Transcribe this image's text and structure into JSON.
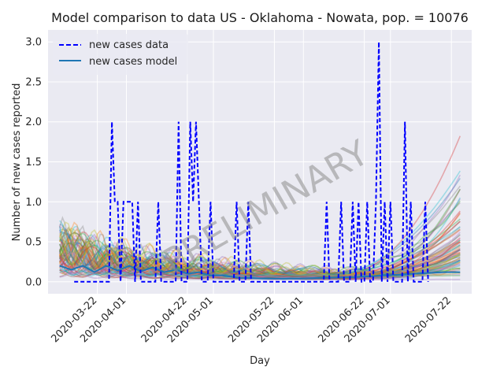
{
  "chart_data": {
    "type": "line",
    "title": "Model comparison to data US - Oklahoma - Nowata, pop. = 10076",
    "xlabel": "Day",
    "ylabel": "Number of new cases reported",
    "x_start": "2020-03-09",
    "x_end": "2020-07-25",
    "xlim": [
      "2020-03-05",
      "2020-07-29"
    ],
    "ylim": [
      -0.15,
      3.15
    ],
    "yticks": [
      0.0,
      0.5,
      1.0,
      1.5,
      2.0,
      2.5,
      3.0
    ],
    "xticks": [
      "2020-03-22",
      "2020-04-01",
      "2020-04-22",
      "2020-05-01",
      "2020-05-22",
      "2020-06-01",
      "2020-06-22",
      "2020-07-01",
      "2020-07-22"
    ],
    "grid": true,
    "legend_position": "top-left",
    "watermark": "PRELIMINARY",
    "series": [
      {
        "name": "new cases data",
        "style": "dashed",
        "color": "#0000ff",
        "points": [
          [
            "2020-03-14",
            0
          ],
          [
            "2020-03-26",
            0
          ],
          [
            "2020-03-27",
            2
          ],
          [
            "2020-03-28",
            1
          ],
          [
            "2020-03-29",
            1
          ],
          [
            "2020-03-30",
            0
          ],
          [
            "2020-03-31",
            1
          ],
          [
            "2020-04-01",
            1
          ],
          [
            "2020-04-02",
            1
          ],
          [
            "2020-04-03",
            1
          ],
          [
            "2020-04-04",
            0
          ],
          [
            "2020-04-05",
            1
          ],
          [
            "2020-04-06",
            0
          ],
          [
            "2020-04-11",
            0
          ],
          [
            "2020-04-12",
            1
          ],
          [
            "2020-04-13",
            0
          ],
          [
            "2020-04-18",
            0
          ],
          [
            "2020-04-19",
            2
          ],
          [
            "2020-04-20",
            0
          ],
          [
            "2020-04-22",
            0
          ],
          [
            "2020-04-23",
            2
          ],
          [
            "2020-04-24",
            1
          ],
          [
            "2020-04-25",
            2
          ],
          [
            "2020-04-26",
            1
          ],
          [
            "2020-04-27",
            0
          ],
          [
            "2020-04-29",
            0
          ],
          [
            "2020-04-30",
            1
          ],
          [
            "2020-05-01",
            0
          ],
          [
            "2020-05-08",
            0
          ],
          [
            "2020-05-09",
            1
          ],
          [
            "2020-05-10",
            0
          ],
          [
            "2020-05-12",
            0
          ],
          [
            "2020-05-13",
            1
          ],
          [
            "2020-05-14",
            0
          ],
          [
            "2020-06-08",
            0
          ],
          [
            "2020-06-09",
            1
          ],
          [
            "2020-06-10",
            0
          ],
          [
            "2020-06-13",
            0
          ],
          [
            "2020-06-14",
            1
          ],
          [
            "2020-06-15",
            0
          ],
          [
            "2020-06-17",
            0
          ],
          [
            "2020-06-18",
            1
          ],
          [
            "2020-06-19",
            0
          ],
          [
            "2020-06-20",
            1
          ],
          [
            "2020-06-21",
            0
          ],
          [
            "2020-06-22",
            0
          ],
          [
            "2020-06-23",
            1
          ],
          [
            "2020-06-24",
            0
          ],
          [
            "2020-06-25",
            0
          ],
          [
            "2020-06-26",
            1
          ],
          [
            "2020-06-27",
            3
          ],
          [
            "2020-06-28",
            0
          ],
          [
            "2020-06-29",
            1
          ],
          [
            "2020-06-30",
            0
          ],
          [
            "2020-07-01",
            1
          ],
          [
            "2020-07-02",
            0
          ],
          [
            "2020-07-05",
            0
          ],
          [
            "2020-07-06",
            2
          ],
          [
            "2020-07-07",
            0
          ],
          [
            "2020-07-08",
            1
          ],
          [
            "2020-07-09",
            0
          ],
          [
            "2020-07-12",
            0
          ],
          [
            "2020-07-13",
            1
          ],
          [
            "2020-07-14",
            0
          ]
        ]
      },
      {
        "name": "new cases model",
        "style": "solid",
        "color": "#1f77b4",
        "points": [
          [
            "2020-03-09",
            0.2
          ],
          [
            "2020-03-13",
            0.15
          ],
          [
            "2020-03-17",
            0.2
          ],
          [
            "2020-03-21",
            0.12
          ],
          [
            "2020-03-25",
            0.2
          ],
          [
            "2020-03-29",
            0.14
          ],
          [
            "2020-04-02",
            0.2
          ],
          [
            "2020-04-06",
            0.13
          ],
          [
            "2020-04-10",
            0.18
          ],
          [
            "2020-04-14",
            0.12
          ],
          [
            "2020-04-18",
            0.15
          ],
          [
            "2020-04-22",
            0.1
          ],
          [
            "2020-04-26",
            0.12
          ],
          [
            "2020-04-30",
            0.08
          ],
          [
            "2020-05-04",
            0.08
          ],
          [
            "2020-05-10",
            0.05
          ],
          [
            "2020-05-20",
            0.04
          ],
          [
            "2020-05-30",
            0.04
          ],
          [
            "2020-06-09",
            0.05
          ],
          [
            "2020-06-19",
            0.06
          ],
          [
            "2020-06-29",
            0.08
          ],
          [
            "2020-07-09",
            0.1
          ],
          [
            "2020-07-19",
            0.12
          ],
          [
            "2020-07-25",
            0.12
          ]
        ]
      }
    ],
    "ensemble_colors": [
      "#1f77b4",
      "#ff7f0e",
      "#2ca02c",
      "#d62728",
      "#9467bd",
      "#8c564b",
      "#e377c2",
      "#7f7f7f",
      "#bcbd22",
      "#17becf"
    ]
  }
}
